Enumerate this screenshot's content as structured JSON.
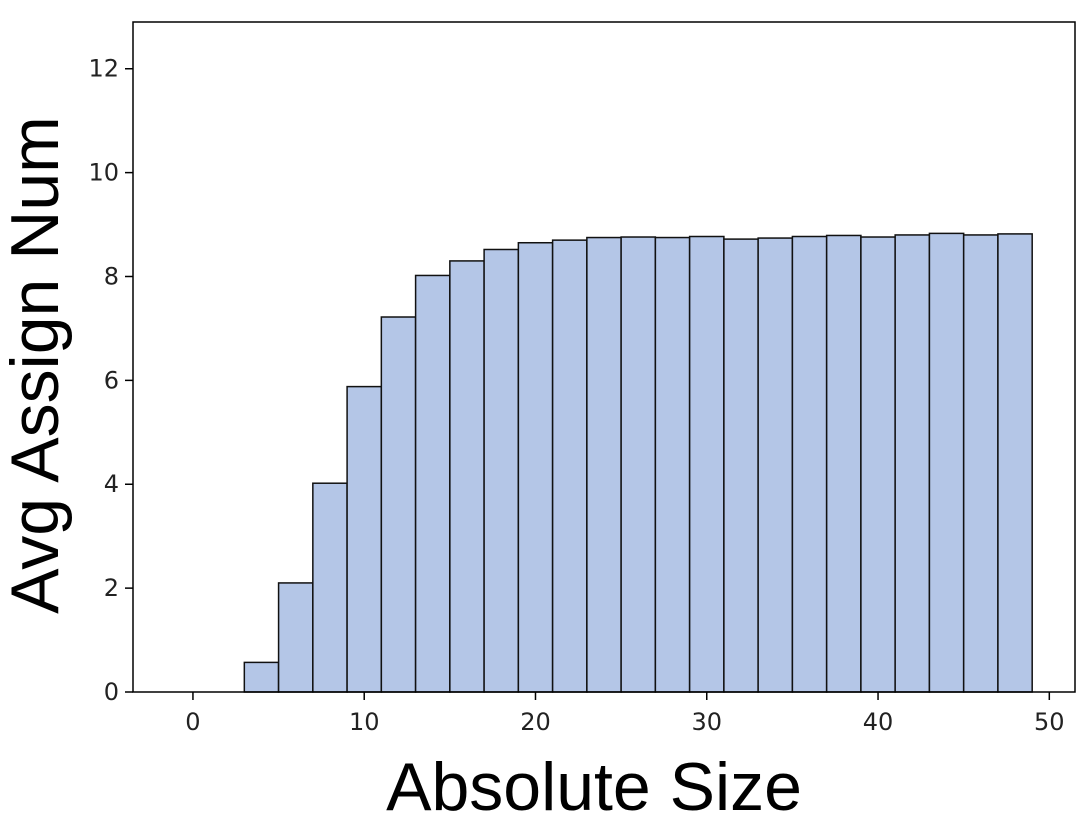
{
  "chart_data": {
    "type": "bar",
    "title": "",
    "xlabel": "Absolute Size",
    "ylabel": "Avg Assign Num",
    "xlim": [
      -3.5,
      51.5
    ],
    "ylim": [
      0,
      12.9
    ],
    "xticks": [
      0,
      10,
      20,
      30,
      40,
      50
    ],
    "yticks": [
      0,
      2,
      4,
      6,
      8,
      10,
      12
    ],
    "bin_width": 2,
    "bin_starts": [
      -1,
      1,
      3,
      5,
      7,
      9,
      11,
      13,
      15,
      17,
      19,
      21,
      23,
      25,
      27,
      29,
      31,
      33,
      35,
      37,
      39,
      41,
      43,
      45,
      47
    ],
    "values": [
      0.0,
      0.0,
      0.57,
      2.1,
      4.02,
      5.88,
      7.22,
      8.02,
      8.3,
      8.52,
      8.65,
      8.7,
      8.75,
      8.76,
      8.75,
      8.77,
      8.72,
      8.74,
      8.77,
      8.79,
      8.76,
      8.8,
      8.83,
      8.8,
      8.82
    ],
    "bar_color": "#b4c6e7",
    "edge_color": "#111111",
    "grid": false,
    "legend": "none"
  }
}
